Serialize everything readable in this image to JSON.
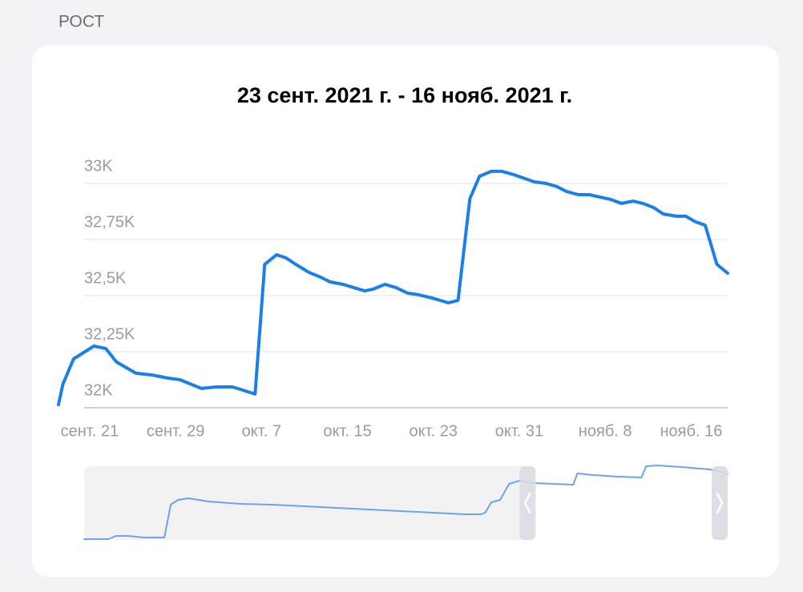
{
  "section_title": "РОСТ",
  "chart_data": {
    "type": "line",
    "title": "23 сент. 2021 г. - 16 нояб. 2021 г.",
    "x": [
      -2.9,
      -2.5,
      -1.5,
      0.4,
      1.5,
      2.5,
      4.3,
      5.8,
      7.3,
      8.4,
      10.4,
      11.8,
      13.3,
      15.4,
      16.3,
      17.4,
      18.3,
      19.2,
      20.4,
      21.5,
      22.4,
      23.6,
      25.6,
      26.4,
      27.5,
      28.5,
      29.6,
      30.6,
      31.9,
      33.4,
      34.3,
      35.4,
      36.3,
      37.4,
      38.4,
      39.5,
      41.4,
      42.5,
      43.5,
      44.4,
      45.5,
      46.5,
      48.5,
      49.5,
      50.6,
      51.5,
      52.5,
      53.4,
      54.6,
      55.5,
      56.4,
      57.3,
      58.4,
      59.4
    ],
    "series": [
      {
        "color": "#1b7fe9",
        "values": [
          32014,
          32104,
          32218,
          32275,
          32264,
          32204,
          32154,
          32146,
          32132,
          32125,
          32086,
          32093,
          32093,
          32061,
          32639,
          32682,
          32668,
          32639,
          32604,
          32582,
          32561,
          32550,
          32521,
          32529,
          32550,
          32536,
          32511,
          32504,
          32489,
          32468,
          32479,
          32932,
          33032,
          33054,
          33054,
          33039,
          33007,
          33000,
          32986,
          32964,
          32950,
          32950,
          32929,
          32911,
          32921,
          32911,
          32893,
          32864,
          32854,
          32854,
          32829,
          32814,
          32639,
          32600
        ]
      }
    ],
    "xlim": [
      -2.9,
      59.4
    ],
    "xticks": [
      {
        "value": 0,
        "label": "сент. 21"
      },
      {
        "value": 8,
        "label": "сент. 29"
      },
      {
        "value": 16,
        "label": "окт. 7"
      },
      {
        "value": 24,
        "label": "окт. 15"
      },
      {
        "value": 32,
        "label": "окт. 23"
      },
      {
        "value": 40,
        "label": "окт. 31"
      },
      {
        "value": 48,
        "label": "нояб. 8"
      },
      {
        "value": 56,
        "label": "нояб. 16"
      }
    ],
    "ylim": [
      32000,
      33100
    ],
    "yticks": [
      {
        "value": 32000,
        "label": "32K"
      },
      {
        "value": 32250,
        "label": "32,25K"
      },
      {
        "value": 32500,
        "label": "32,5K"
      },
      {
        "value": 32750,
        "label": "32,75K"
      },
      {
        "value": 33000,
        "label": "33K"
      }
    ],
    "grid": true
  },
  "navigator": {
    "color": "#6aa5ea",
    "x": [
      -133.2,
      -126.0,
      -123.6,
      -120.0,
      -115.2,
      -109.2,
      -107.3,
      -105.1,
      -102.0,
      -96.0,
      -86.4,
      -76.8,
      -67.2,
      -57.6,
      -48.0,
      -38.4,
      -28.8,
      -19.2,
      -14.4,
      -13.2,
      -11.3,
      -8.7,
      -6.0,
      -2.9,
      1.2,
      7.2,
      13.2,
      14.4,
      19.2,
      26.4,
      33.6,
      35.0,
      38.4,
      45.6,
      54.0,
      57.6,
      59.4
    ],
    "values": [
      27999,
      27999,
      28219,
      28219,
      28109,
      28109,
      30364,
      30694,
      30804,
      30584,
      30419,
      30364,
      30254,
      30144,
      30034,
      29924,
      29814,
      29704,
      29704,
      29814,
      30529,
      30694,
      31794,
      32014,
      31849,
      31794,
      31739,
      32509,
      32399,
      32289,
      32234,
      33004,
      33059,
      32949,
      32784,
      32619,
      32454
    ],
    "xlim": [
      -133.2,
      59.4
    ],
    "ylim": [
      27890,
      33115
    ]
  }
}
